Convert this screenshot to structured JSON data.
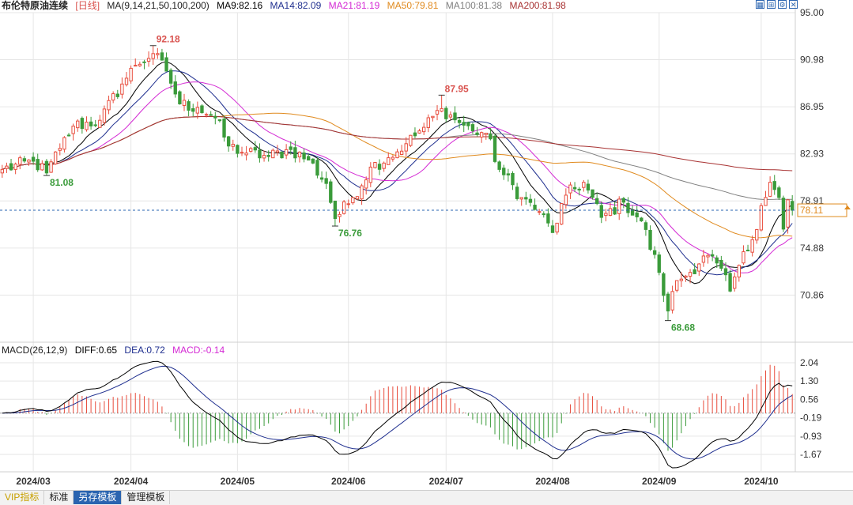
{
  "header": {
    "title": "布伦特原油连续",
    "period": "[日线]",
    "ma_label": "MA(9,14,21,50,100,200)",
    "ma_values": [
      {
        "label": "MA9:82.16",
        "color": "#000000"
      },
      {
        "label": "MA14:82.09",
        "color": "#1f2f8f"
      },
      {
        "label": "MA21:81.19",
        "color": "#d42ad4"
      },
      {
        "label": "MA50:79.81",
        "color": "#e08a1e"
      },
      {
        "label": "MA100:81.38",
        "color": "#808080"
      },
      {
        "label": "MA200:81.98",
        "color": "#a83232"
      }
    ],
    "tool_icons": [
      "grid-icon",
      "expand-icon",
      "settings-icon",
      "close-icon"
    ]
  },
  "macd_header": {
    "label": "MACD(26,12,9)",
    "diff": "DIFF:0.65",
    "dea": "DEA:0.72",
    "macd": "MACD:-0.14"
  },
  "bottom_tabs": [
    "VIP指标",
    "标准",
    "另存模板",
    "管理模板"
  ],
  "colors": {
    "up": "#e84d3d",
    "down": "#3a9b3a",
    "grid": "#e6e6e6",
    "axis_text": "#333333",
    "current_price_line": "#2a64b0",
    "current_price_label": "#e08a1e"
  },
  "chart_data": [
    {
      "type": "candlestick",
      "title": "布伦特原油连续 [日线]",
      "ylim": [
        66.9,
        95.0
      ],
      "y_ticks": [
        "95.00",
        "90.98",
        "86.95",
        "82.93",
        "78.91",
        "74.88",
        "70.86"
      ],
      "x_tick_labels": [
        "2024/03",
        "2024/04",
        "2024/05",
        "2024/06",
        "2024/07",
        "2024/08",
        "2024/09",
        "2024/10"
      ],
      "x_tick_index": [
        7,
        29,
        53,
        78,
        100,
        124,
        148,
        171
      ],
      "annotations": [
        {
          "text": "92.18",
          "index": 34,
          "price": 92.18,
          "kind": "high",
          "color": "#d9534f"
        },
        {
          "text": "81.08",
          "index": 10,
          "price": 81.08,
          "kind": "low",
          "color": "#3a9b3a"
        },
        {
          "text": "76.76",
          "index": 75,
          "price": 76.76,
          "kind": "low",
          "color": "#3a9b3a"
        },
        {
          "text": "87.95",
          "index": 99,
          "price": 87.95,
          "kind": "high",
          "color": "#d9534f"
        },
        {
          "text": "68.68",
          "index": 150,
          "price": 68.68,
          "kind": "low",
          "color": "#3a9b3a"
        }
      ],
      "current_price": 78.11,
      "current_price_label": "78.11",
      "close_anchors": [
        [
          0,
          81.6
        ],
        [
          7,
          82.3
        ],
        [
          10,
          81.3
        ],
        [
          13,
          83.4
        ],
        [
          16,
          85.3
        ],
        [
          22,
          85.8
        ],
        [
          27,
          88.9
        ],
        [
          30,
          90.5
        ],
        [
          34,
          91.5
        ],
        [
          37,
          90.0
        ],
        [
          40,
          87.2
        ],
        [
          44,
          86.9
        ],
        [
          48,
          86.0
        ],
        [
          51,
          83.6
        ],
        [
          55,
          83.0
        ],
        [
          60,
          82.7
        ],
        [
          65,
          83.3
        ],
        [
          69,
          82.4
        ],
        [
          73,
          80.4
        ],
        [
          75,
          77.4
        ],
        [
          79,
          79.2
        ],
        [
          83,
          81.8
        ],
        [
          87,
          82.6
        ],
        [
          91,
          83.8
        ],
        [
          95,
          85.2
        ],
        [
          99,
          86.8
        ],
        [
          103,
          85.6
        ],
        [
          106,
          84.9
        ],
        [
          109,
          84.7
        ],
        [
          112,
          81.6
        ],
        [
          117,
          79.2
        ],
        [
          121,
          78.0
        ],
        [
          124,
          76.2
        ],
        [
          127,
          79.4
        ],
        [
          131,
          80.5
        ],
        [
          135,
          77.5
        ],
        [
          140,
          78.8
        ],
        [
          144,
          77.2
        ],
        [
          148,
          72.8
        ],
        [
          150,
          69.5
        ],
        [
          152,
          72.1
        ],
        [
          155,
          72.8
        ],
        [
          158,
          74.2
        ],
        [
          161,
          73.6
        ],
        [
          164,
          71.2
        ],
        [
          166,
          73.4
        ],
        [
          169,
          75.6
        ],
        [
          171,
          78.5
        ],
        [
          173,
          80.5
        ],
        [
          175,
          79.2
        ],
        [
          176,
          76.5
        ],
        [
          177,
          79.0
        ],
        [
          178,
          78.11
        ]
      ],
      "moving_averages": [
        {
          "name": "MA9",
          "period": 9,
          "color": "#000000"
        },
        {
          "name": "MA14",
          "period": 14,
          "color": "#1f2f8f"
        },
        {
          "name": "MA21",
          "period": 21,
          "color": "#d42ad4"
        },
        {
          "name": "MA50",
          "period": 50,
          "color": "#e08a1e"
        },
        {
          "name": "MA100",
          "period": 100,
          "color": "#808080"
        },
        {
          "name": "MA200",
          "period": 200,
          "color": "#a83232"
        }
      ]
    },
    {
      "type": "macd",
      "title": "MACD(26,12,9)",
      "ylim": [
        -2.15,
        2.2
      ],
      "y_ticks": [
        "2.04",
        "1.30",
        "0.56",
        "-0.19",
        "-0.93",
        "-1.67"
      ],
      "series": [
        {
          "name": "DIFF",
          "value": 0.65,
          "color": "#000000"
        },
        {
          "name": "DEA",
          "value": 0.72,
          "color": "#1f2f8f"
        },
        {
          "name": "MACD",
          "value": -0.14,
          "type": "histogram"
        }
      ]
    }
  ]
}
